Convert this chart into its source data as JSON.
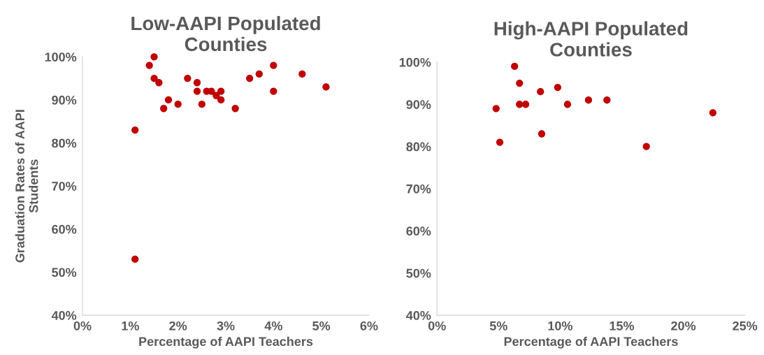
{
  "chart_data": [
    {
      "type": "scatter",
      "title": "Low-AAPI Populated\nCounties",
      "xlabel": "Percentage of AAPI Teachers",
      "ylabel": "Graduation Rates of AAPI\nStudents",
      "marker": "circle",
      "series": [
        {
          "color": "#c00000",
          "x": [
            1.1,
            1.1,
            1.4,
            1.5,
            1.5,
            1.6,
            1.7,
            1.8,
            2.0,
            2.2,
            2.4,
            2.4,
            2.5,
            2.6,
            2.7,
            2.8,
            2.9,
            2.9,
            3.2,
            3.5,
            3.7,
            4.0,
            4.0,
            4.6,
            5.1
          ],
          "values": [
            83,
            53,
            98,
            100,
            95,
            94,
            88,
            90,
            89,
            95,
            94,
            92,
            89,
            92,
            92,
            91,
            92,
            90,
            88,
            95,
            96,
            98,
            92,
            96,
            93
          ]
        }
      ],
      "xlim": [
        0,
        6
      ],
      "xticks": [
        {
          "value": 0,
          "label": "0%"
        },
        {
          "value": 1,
          "label": "1%"
        },
        {
          "value": 2,
          "label": "2%"
        },
        {
          "value": 3,
          "label": "3%"
        },
        {
          "value": 4,
          "label": "4%"
        },
        {
          "value": 5,
          "label": "5%"
        },
        {
          "value": 6,
          "label": "6%"
        }
      ],
      "ylim": [
        40,
        100
      ],
      "yticks": [
        {
          "value": 40,
          "label": "40%"
        },
        {
          "value": 50,
          "label": "50%"
        },
        {
          "value": 60,
          "label": "60%"
        },
        {
          "value": 70,
          "label": "70%"
        },
        {
          "value": 80,
          "label": "80%"
        },
        {
          "value": 90,
          "label": "90%"
        },
        {
          "value": 100,
          "label": "100%"
        }
      ]
    },
    {
      "type": "scatter",
      "title": "High-AAPI Populated\nCounties",
      "xlabel": "Percentage of AAPI Teachers",
      "marker": "circle",
      "series": [
        {
          "color": "#c00000",
          "x": [
            4.8,
            5.1,
            6.3,
            6.7,
            6.7,
            7.2,
            8.4,
            8.5,
            9.8,
            10.6,
            12.3,
            13.8,
            17.0,
            22.4
          ],
          "values": [
            89,
            81,
            99,
            95,
            90,
            90,
            93,
            83,
            94,
            90,
            91,
            91,
            80,
            88
          ]
        }
      ],
      "xlim": [
        0,
        25
      ],
      "xticks": [
        {
          "value": 0,
          "label": "0%"
        },
        {
          "value": 5,
          "label": "5%"
        },
        {
          "value": 10,
          "label": "10%"
        },
        {
          "value": 15,
          "label": "15%"
        },
        {
          "value": 20,
          "label": "20%"
        },
        {
          "value": 25,
          "label": "25%"
        }
      ],
      "ylim": [
        40,
        100
      ],
      "yticks": [
        {
          "value": 40,
          "label": "40%"
        },
        {
          "value": 50,
          "label": "50%"
        },
        {
          "value": 60,
          "label": "60%"
        },
        {
          "value": 70,
          "label": "70%"
        },
        {
          "value": 80,
          "label": "80%"
        },
        {
          "value": 90,
          "label": "90%"
        },
        {
          "value": 100,
          "label": "100%"
        }
      ]
    }
  ]
}
